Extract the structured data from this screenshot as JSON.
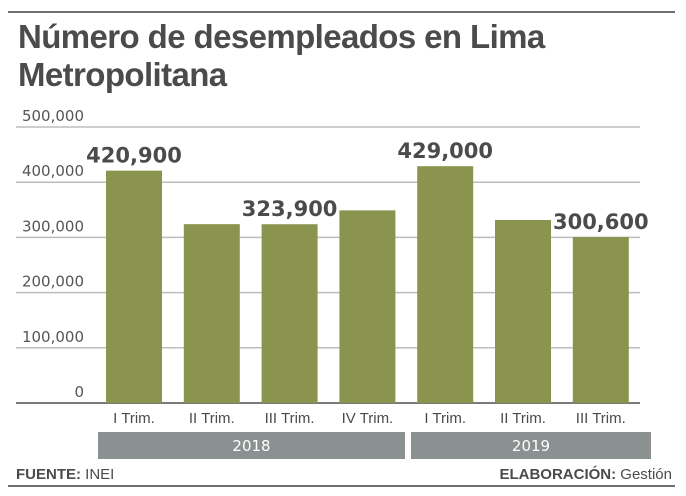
{
  "chart_data": {
    "type": "bar",
    "title": "Número de desempleados en Lima Metropolitana",
    "xlabel": "",
    "ylabel": "",
    "ylim": [
      0,
      500000
    ],
    "yticks": [
      0,
      100000,
      200000,
      300000,
      400000,
      500000
    ],
    "ytick_labels": [
      "0",
      "100,000",
      "200,000",
      "300,000",
      "400,000",
      "500,000"
    ],
    "grid": true,
    "categories": [
      "I Trim.",
      "II Trim.",
      "III Trim.",
      "IV Trim.",
      "I Trim.",
      "II Trim.",
      "III Trim."
    ],
    "values": [
      420900,
      324000,
      323900,
      349000,
      429000,
      331500,
      300600
    ],
    "data_labels": [
      "420,900",
      "",
      "323,900",
      "",
      "429,000",
      "",
      "300,600"
    ],
    "groups": [
      {
        "label": "2018",
        "count": 4
      },
      {
        "label": "2019",
        "count": 3
      }
    ],
    "colors": {
      "bar": "#8b944f",
      "grid": "#bdbdbd",
      "axis": "#7a7a7a",
      "band": "#8a9190"
    }
  },
  "footer": {
    "source_label": "FUENTE:",
    "source_value": "INEI",
    "credit_label": "ELABORACIÓN:",
    "credit_value": "Gestión"
  }
}
